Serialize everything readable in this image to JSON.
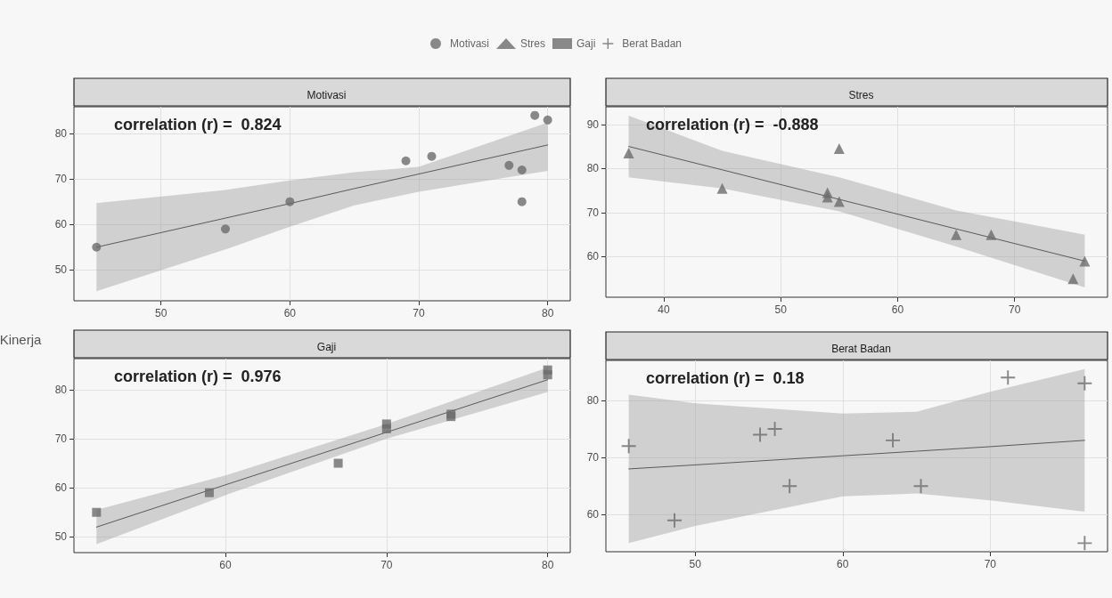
{
  "chart_data": [
    {
      "type": "scatter",
      "title": "Motivasi",
      "ylabel": "Kinerja",
      "annotations": [
        "correlation (r) =  0.824"
      ],
      "xlim": [
        43.25,
        81.75
      ],
      "ylim": [
        43.2,
        85.9
      ],
      "xticks": [
        50,
        60,
        70,
        80
      ],
      "yticks": [
        50,
        60,
        70,
        80
      ],
      "grid": true,
      "legend": "top",
      "series": [
        {
          "name": "Motivasi",
          "color": "#6b6b6b",
          "marker": "circle",
          "x": [
            45,
            55,
            60,
            69,
            71,
            77,
            78,
            78,
            79,
            80
          ],
          "values": [
            55,
            59,
            65,
            74,
            75,
            73,
            72,
            65,
            84,
            83
          ]
        },
        {
          "type": "line",
          "color": "#5a5a5a",
          "marker": "none",
          "x": [
            45,
            55,
            60,
            65,
            70,
            80
          ],
          "values": [
            55,
            61.4,
            64.6,
            67.9,
            71.1,
            77.5
          ],
          "lower": [
            45.3,
            54.5,
            59.5,
            64.2,
            67.2,
            71.8
          ],
          "upper": [
            64.7,
            67.6,
            69.7,
            71.5,
            72.7,
            82.4
          ]
        }
      ]
    },
    {
      "type": "scatter",
      "title": "Stres",
      "annotations": [
        "correlation (r) =  -0.888"
      ],
      "xlim": [
        35.05,
        77.95
      ],
      "ylim": [
        50.8,
        94
      ],
      "xticks": [
        40,
        50,
        60,
        70
      ],
      "yticks": [
        60,
        70,
        80,
        90
      ],
      "grid": true,
      "legend": "top",
      "series": [
        {
          "name": "Stres",
          "color": "#6b6b6b",
          "marker": "triangle",
          "x": [
            37,
            45,
            54,
            54,
            55,
            55,
            65,
            68,
            75,
            76
          ],
          "values": [
            83.5,
            75.5,
            74.5,
            73.5,
            72.5,
            84.5,
            65,
            65,
            55,
            59
          ]
        },
        {
          "type": "line",
          "color": "#5a5a5a",
          "marker": "none",
          "x": [
            37,
            45,
            55,
            65,
            76
          ],
          "values": [
            85,
            79.7,
            73,
            66.3,
            59
          ],
          "lower": [
            78,
            75.5,
            70.3,
            62.3,
            53
          ],
          "upper": [
            92,
            84,
            78,
            70.5,
            65
          ]
        }
      ]
    },
    {
      "type": "scatter",
      "title": "Gaji",
      "annotations": [
        "correlation (r) =  0.976"
      ],
      "xlim": [
        50.6,
        81.4
      ],
      "ylim": [
        46.8,
        86.3
      ],
      "xticks": [
        60,
        70,
        80
      ],
      "yticks": [
        50,
        60,
        70,
        80
      ],
      "grid": true,
      "legend": "top",
      "series": [
        {
          "name": "Gaji",
          "color": "#6b6b6b",
          "marker": "square",
          "x": [
            52,
            59,
            67,
            70,
            70,
            74,
            74,
            80,
            80
          ],
          "values": [
            55,
            59,
            65,
            72,
            73,
            74.5,
            75,
            83,
            84
          ]
        },
        {
          "type": "line",
          "color": "#5a5a5a",
          "marker": "none",
          "x": [
            52,
            60,
            70,
            80
          ],
          "values": [
            52,
            60.6,
            71.3,
            82
          ],
          "lower": [
            48.5,
            58.5,
            70,
            79.5
          ],
          "upper": [
            55.5,
            62.5,
            73,
            84.5
          ]
        }
      ]
    },
    {
      "type": "scatter",
      "title": "Berat Badan",
      "annotations": [
        "correlation (r) =  0.18"
      ],
      "xlim": [
        43.95,
        77.95
      ],
      "ylim": [
        53.5,
        87
      ],
      "xticks": [
        50,
        60,
        70
      ],
      "yticks": [
        60,
        70,
        80
      ],
      "grid": true,
      "legend": "top",
      "series": [
        {
          "name": "Berat Badan",
          "color": "#6b6b6b",
          "marker": "cross",
          "x": [
            45.5,
            48.6,
            54.4,
            55.4,
            56.4,
            63.4,
            65.3,
            71.2,
            76.4,
            76.4
          ],
          "values": [
            72,
            59,
            74,
            75,
            65,
            73,
            65,
            84,
            83,
            55
          ]
        },
        {
          "type": "line",
          "color": "#5a5a5a",
          "marker": "none",
          "x": [
            45.5,
            50,
            60,
            65,
            70,
            76.4
          ],
          "values": [
            68,
            68.7,
            70.3,
            71.1,
            71.9,
            73
          ],
          "lower": [
            55,
            58,
            63.2,
            63.7,
            62.5,
            60.5
          ],
          "upper": [
            81,
            79.5,
            77.7,
            78,
            81.5,
            85.5
          ]
        }
      ]
    }
  ]
}
